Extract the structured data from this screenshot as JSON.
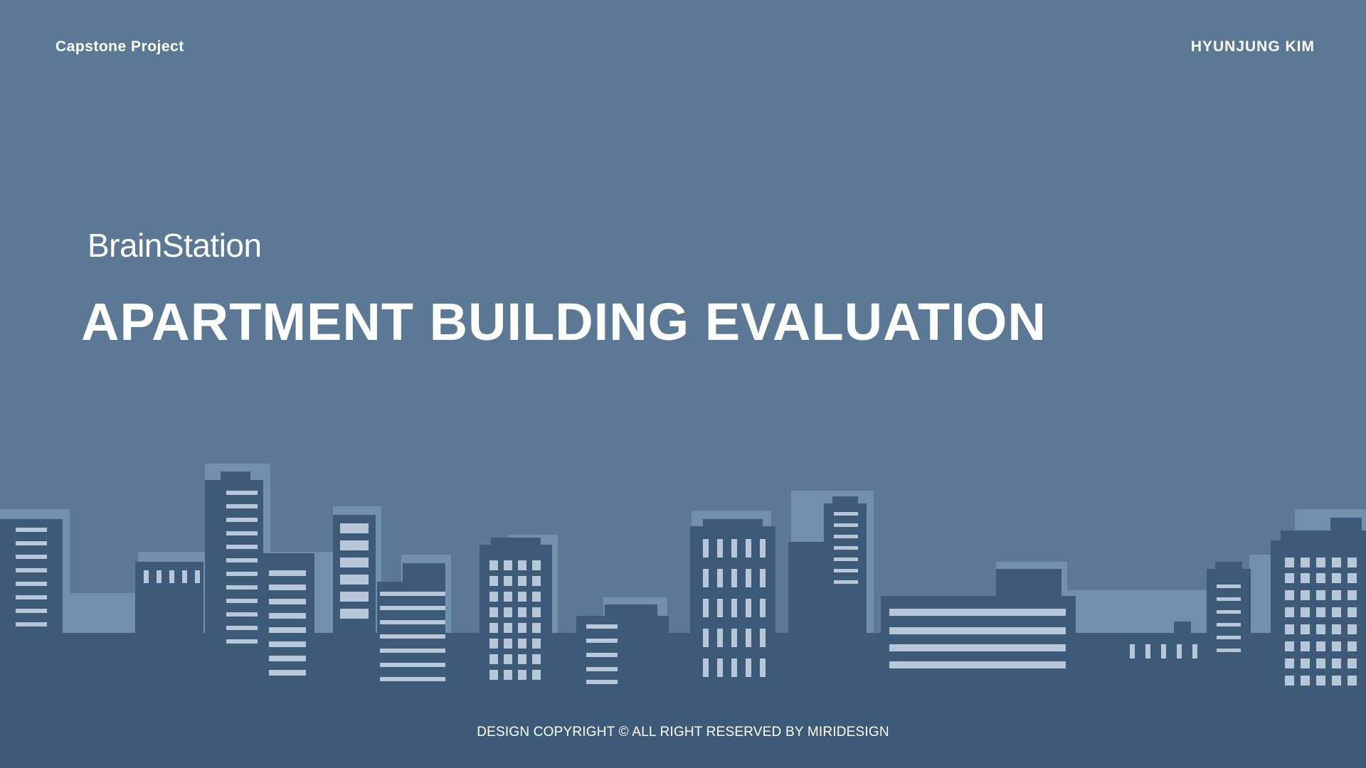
{
  "header": {
    "project_label": "Capstone Project",
    "author": "HYUNJUNG KIM"
  },
  "main": {
    "subtitle": "BrainStation",
    "title": "APARTMENT BUILDING EVALUATION"
  },
  "footer": {
    "copyright": "DESIGN COPYRIGHT © ALL RIGHT RESERVED BY MIRIDESIGN"
  },
  "colors": {
    "background": "#5b7994",
    "building_shadow": "#7190ab",
    "building": "#3d5a78",
    "window": "#b7c7d8",
    "text": "#ffffff"
  }
}
